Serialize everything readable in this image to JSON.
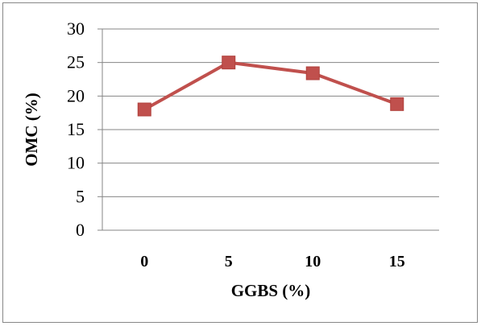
{
  "chart_data": {
    "type": "line",
    "title": "",
    "xlabel": "GGBS (%)",
    "ylabel": "OMC (%)",
    "categories": [
      "0",
      "5",
      "10",
      "15"
    ],
    "series": [
      {
        "values": [
          18,
          25,
          23.4,
          18.8
        ],
        "color": "#c0504d",
        "marker": "square"
      }
    ],
    "ylim": [
      0,
      30
    ],
    "yticks": [
      "0",
      "5",
      "10",
      "15",
      "20",
      "25",
      "30"
    ],
    "grid": true,
    "legend": "none"
  }
}
